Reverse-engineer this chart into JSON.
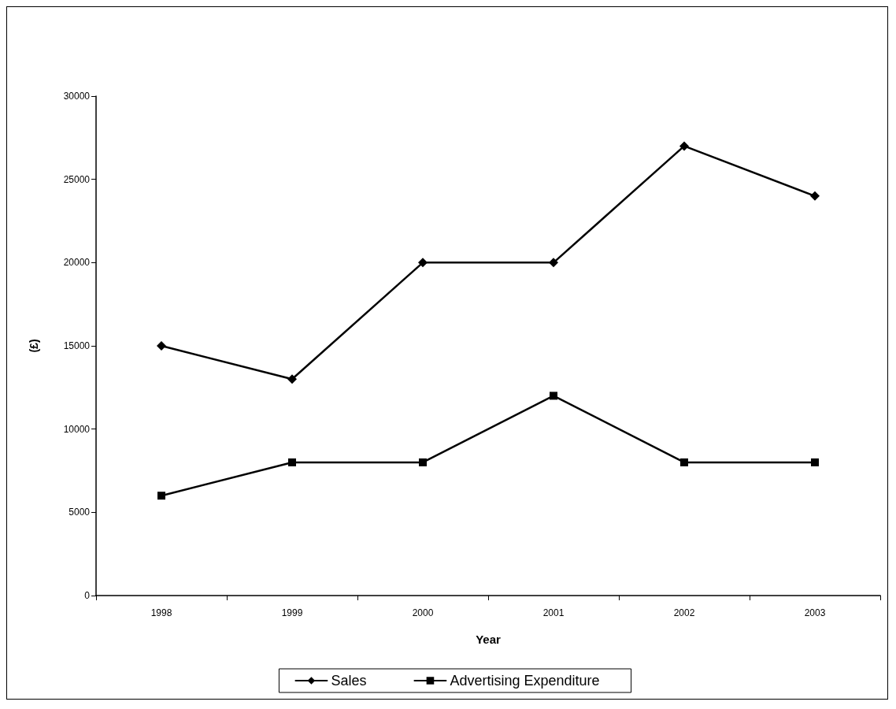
{
  "chart_data": {
    "type": "line",
    "xlabel": "Year",
    "ylabel": "(£)",
    "categories": [
      "1998",
      "1999",
      "2000",
      "2001",
      "2002",
      "2003"
    ],
    "series": [
      {
        "name": "Sales",
        "color": "#000000",
        "marker": "diamond",
        "values": [
          15000,
          13000,
          20000,
          20000,
          27000,
          24000
        ]
      },
      {
        "name": "Advertising Expenditure",
        "color": "#000000",
        "marker": "square",
        "values": [
          6000,
          8000,
          8000,
          12000,
          8000,
          8000
        ]
      }
    ],
    "ylim": [
      0,
      30000
    ],
    "yticks": [
      0,
      5000,
      10000,
      15000,
      20000,
      25000,
      30000
    ],
    "grid": false,
    "legend": "bottom",
    "line_style": "solid"
  }
}
